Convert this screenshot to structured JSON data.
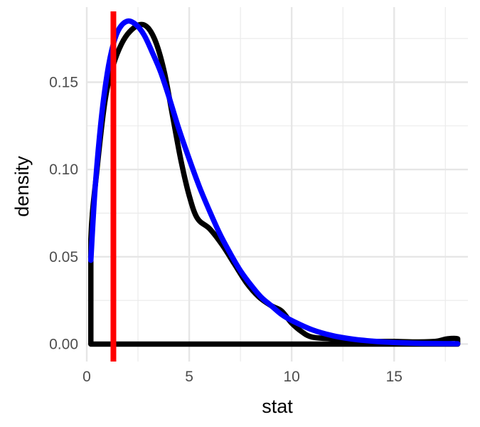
{
  "chart_data": {
    "type": "line",
    "title": "",
    "xlabel": "stat",
    "ylabel": "density",
    "xlim": [
      0,
      18.6
    ],
    "ylim": [
      -0.01,
      0.193
    ],
    "x_ticks": [
      0,
      5,
      10,
      15
    ],
    "x_tick_labels": [
      "0",
      "5",
      "10",
      "15"
    ],
    "x_minor_ticks": [
      2.5,
      7.5,
      12.5,
      17.5
    ],
    "y_ticks": [
      0.0,
      0.05,
      0.1,
      0.15
    ],
    "y_tick_labels": [
      "0.00",
      "0.05",
      "0.10",
      "0.15"
    ],
    "y_minor_ticks": [
      0.025,
      0.075,
      0.125,
      0.175
    ],
    "grid": true,
    "theme": "minimal",
    "legend": "none",
    "series": [
      {
        "role": "observed-density",
        "color": "#000000",
        "closed_to_baseline": true,
        "points": [
          [
            0.2,
            0.0
          ],
          [
            0.2,
            0.06
          ],
          [
            0.5,
            0.1
          ],
          [
            0.9,
            0.14
          ],
          [
            1.3,
            0.16
          ],
          [
            1.7,
            0.172
          ],
          [
            2.1,
            0.179
          ],
          [
            2.6,
            0.183
          ],
          [
            3.0,
            0.181
          ],
          [
            3.4,
            0.172
          ],
          [
            3.8,
            0.155
          ],
          [
            4.2,
            0.13
          ],
          [
            4.6,
            0.105
          ],
          [
            5.0,
            0.085
          ],
          [
            5.4,
            0.072
          ],
          [
            6.0,
            0.066
          ],
          [
            6.6,
            0.057
          ],
          [
            7.2,
            0.046
          ],
          [
            7.8,
            0.035
          ],
          [
            8.4,
            0.027
          ],
          [
            9.0,
            0.022
          ],
          [
            9.5,
            0.019
          ],
          [
            10.0,
            0.012
          ],
          [
            10.5,
            0.007
          ],
          [
            11.0,
            0.004
          ],
          [
            12.0,
            0.003
          ],
          [
            13.0,
            0.002
          ],
          [
            14.0,
            0.0015
          ],
          [
            15.0,
            0.0015
          ],
          [
            16.0,
            0.0012
          ],
          [
            17.0,
            0.0015
          ],
          [
            17.6,
            0.003
          ],
          [
            18.1,
            0.003
          ],
          [
            18.1,
            0.0
          ]
        ]
      },
      {
        "role": "theoretical-density",
        "color": "#0000ff",
        "closed_to_baseline": false,
        "points": [
          [
            0.2,
            0.048
          ],
          [
            0.4,
            0.088
          ],
          [
            0.7,
            0.128
          ],
          [
            1.0,
            0.155
          ],
          [
            1.3,
            0.172
          ],
          [
            1.6,
            0.181
          ],
          [
            2.0,
            0.185
          ],
          [
            2.4,
            0.183
          ],
          [
            2.8,
            0.177
          ],
          [
            3.2,
            0.167
          ],
          [
            3.6,
            0.156
          ],
          [
            4.0,
            0.142
          ],
          [
            4.5,
            0.123
          ],
          [
            5.0,
            0.106
          ],
          [
            5.5,
            0.09
          ],
          [
            6.0,
            0.076
          ],
          [
            6.5,
            0.063
          ],
          [
            7.0,
            0.052
          ],
          [
            7.5,
            0.042
          ],
          [
            8.0,
            0.034
          ],
          [
            8.5,
            0.027
          ],
          [
            9.0,
            0.022
          ],
          [
            9.5,
            0.017
          ],
          [
            10.0,
            0.0135
          ],
          [
            11.0,
            0.0082
          ],
          [
            12.0,
            0.0048
          ],
          [
            13.0,
            0.0028
          ],
          [
            14.0,
            0.0016
          ],
          [
            15.0,
            0.0009
          ],
          [
            16.0,
            0.0005
          ],
          [
            17.0,
            0.0003
          ],
          [
            18.1,
            0.0002
          ]
        ]
      }
    ],
    "vline": {
      "x": 1.3,
      "color": "#ff0000"
    }
  }
}
